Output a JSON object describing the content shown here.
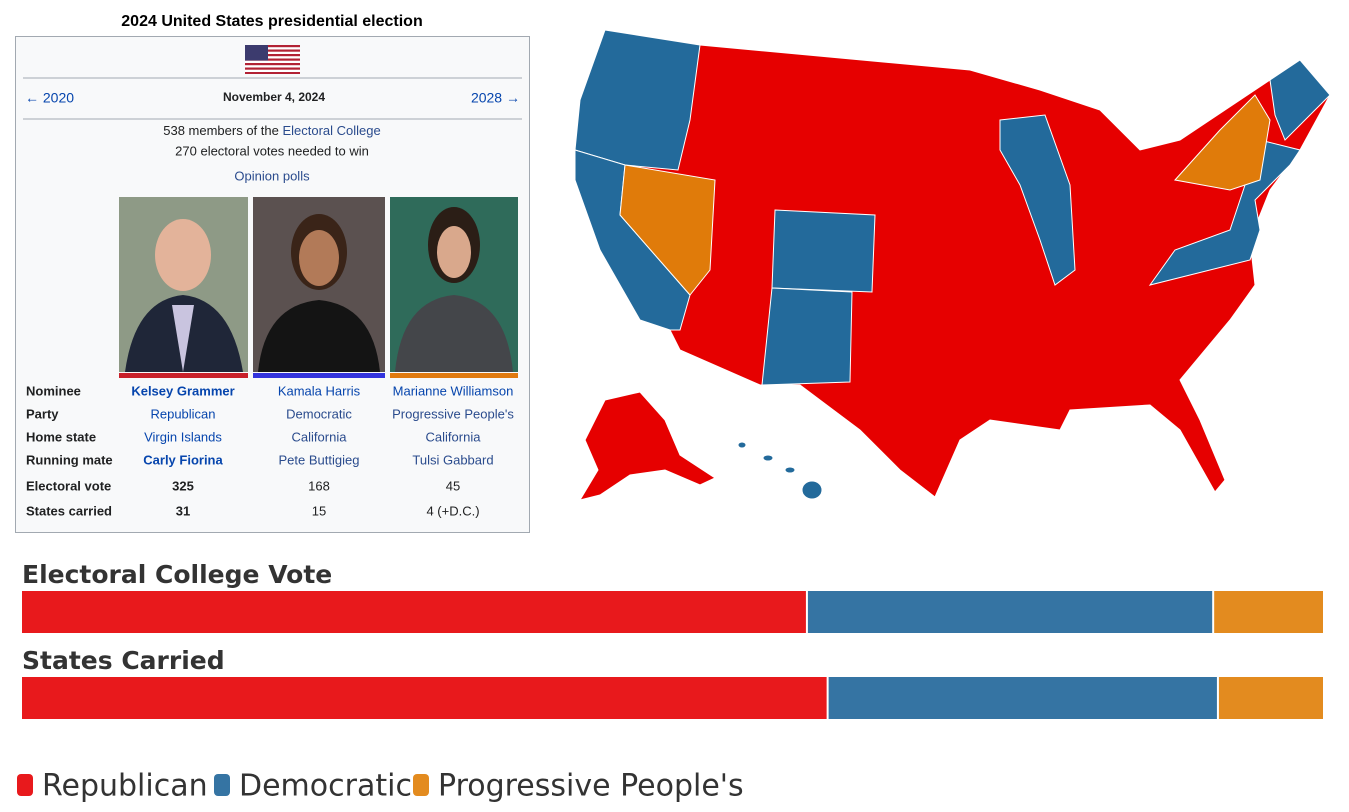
{
  "infobox": {
    "title": "2024 United States presidential election",
    "previous": "← 2020",
    "date": "November 4, 2024",
    "next": "2028 →",
    "members_prefix": "538 members of the ",
    "members_link": "Electoral College",
    "needed": "270 electoral votes needed to win",
    "polls": "Opinion polls",
    "rows": [
      [
        "Nominee",
        "Kelsey Grammer",
        "Kamala Harris",
        "Marianne Williamson"
      ],
      [
        "Party",
        "Republican",
        "Democratic",
        "Progressive People's"
      ],
      [
        "Home state",
        "Virgin Islands",
        "California",
        "California"
      ],
      [
        "Running mate",
        "Carly Fiorina",
        "Pete Buttigieg",
        "Tulsi Gabbard"
      ],
      [
        "Electoral vote",
        325,
        168,
        45
      ],
      [
        "States carried",
        31,
        15,
        "4 (+D.C.)"
      ]
    ]
  },
  "chart_data": {
    "type": "bar",
    "orientation": "horizontal",
    "stacked": true,
    "normalized": true,
    "categories": [
      "Electoral College Vote",
      "States Carried"
    ],
    "series": [
      {
        "name": "Republican",
        "color": "#e8191c",
        "values": [
          325,
          31
        ]
      },
      {
        "name": "Democratic",
        "color": "#3574a3",
        "values": [
          168,
          15
        ]
      },
      {
        "name": "Progressive People's",
        "color": "#e38b1f",
        "values": [
          45,
          4
        ]
      }
    ],
    "legend": "bottom-left"
  }
}
